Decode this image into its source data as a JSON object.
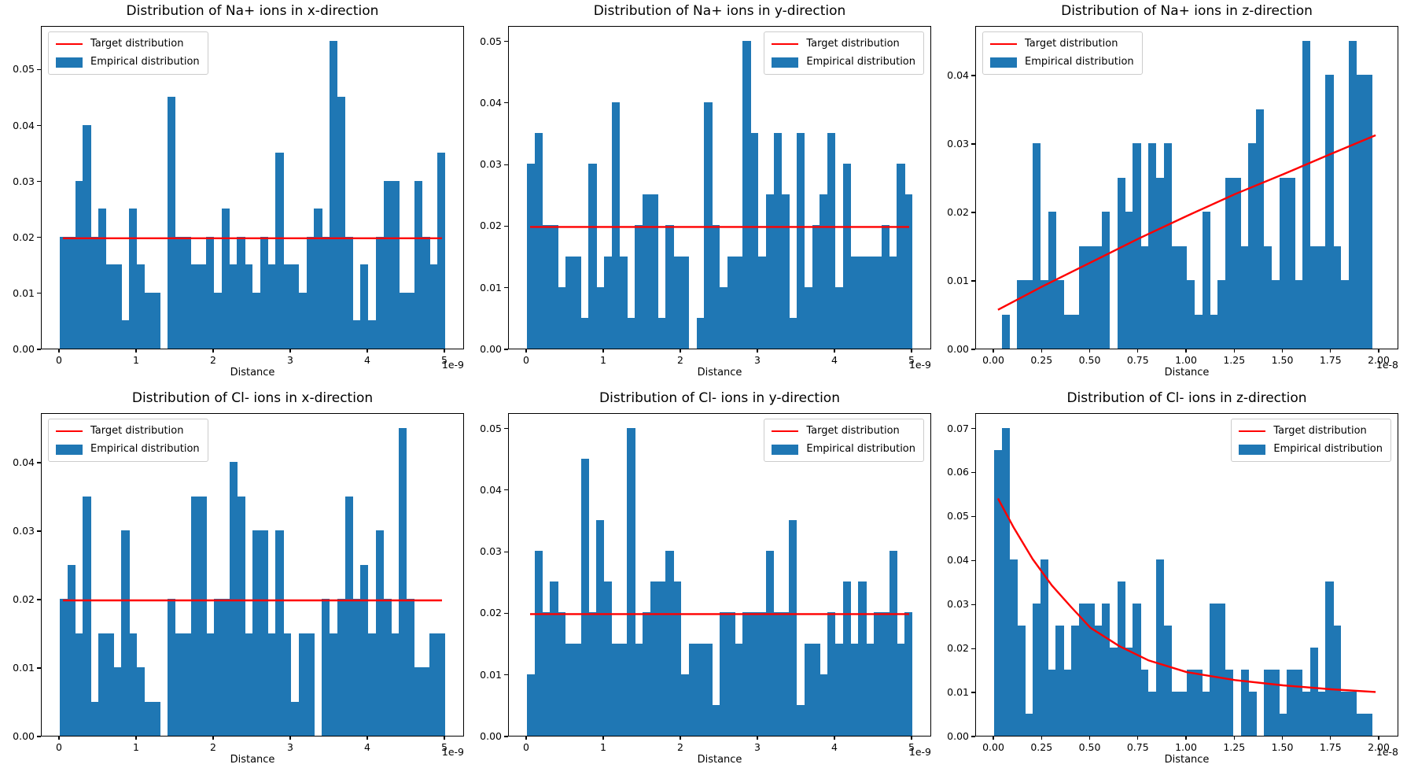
{
  "figure": {
    "colors": {
      "bar": "#1f77b4",
      "target": "#ff0000",
      "spine": "#000000",
      "text": "#000000"
    },
    "legend": {
      "target_label": "Target distribution",
      "empirical_label": "Empirical distribution"
    }
  },
  "chart_data": [
    {
      "type": "bar",
      "title": "Distribution of Na+ ions in x-direction",
      "xlabel": "Distance",
      "x_offset_label": "1e-9",
      "x_unit": "1e-9 m",
      "x_min": 0,
      "x_max": 5,
      "bin_size": 0.1,
      "ylim": [
        0,
        0.0578
      ],
      "x_tick_labels": [
        "0",
        "1",
        "2",
        "3",
        "4",
        "5"
      ],
      "y_tick_labels": [
        "0.00",
        "0.01",
        "0.02",
        "0.03",
        "0.04",
        "0.05"
      ],
      "legend_pos": "left",
      "grid": false,
      "values": [
        0.02,
        0.02,
        0.03,
        0.04,
        0.02,
        0.025,
        0.015,
        0.015,
        0.005,
        0.025,
        0.015,
        0.01,
        0.01,
        0,
        0.045,
        0.02,
        0.02,
        0.015,
        0.015,
        0.02,
        0.01,
        0.025,
        0.015,
        0.02,
        0.015,
        0.01,
        0.02,
        0.015,
        0.035,
        0.015,
        0.015,
        0.01,
        0.02,
        0.025,
        0.02,
        0.055,
        0.045,
        0.02,
        0.005,
        0.015,
        0.005,
        0.02,
        0.03,
        0.03,
        0.01,
        0.01,
        0.03,
        0.02,
        0.015,
        0.035
      ],
      "target": {
        "kind": "flat",
        "y": 0.02
      }
    },
    {
      "type": "bar",
      "title": "Distribution of Na+ ions in y-direction",
      "xlabel": "Distance",
      "x_offset_label": "1e-9",
      "x_unit": "1e-9 m",
      "x_min": 0,
      "x_max": 5,
      "bin_size": 0.1,
      "ylim": [
        0,
        0.0525
      ],
      "x_tick_labels": [
        "0",
        "1",
        "2",
        "3",
        "4",
        "5"
      ],
      "y_tick_labels": [
        "0.00",
        "0.01",
        "0.02",
        "0.03",
        "0.04",
        "0.05"
      ],
      "legend_pos": "right",
      "grid": false,
      "values": [
        0.03,
        0.035,
        0.02,
        0.02,
        0.01,
        0.015,
        0.015,
        0.005,
        0.03,
        0.01,
        0.015,
        0.04,
        0.015,
        0.005,
        0.02,
        0.025,
        0.025,
        0.005,
        0.02,
        0.015,
        0.015,
        0,
        0.005,
        0.04,
        0.02,
        0.01,
        0.015,
        0.015,
        0.05,
        0.035,
        0.015,
        0.025,
        0.035,
        0.025,
        0.005,
        0.035,
        0.01,
        0.02,
        0.025,
        0.035,
        0.01,
        0.03,
        0.015,
        0.015,
        0.015,
        0.015,
        0.02,
        0.015,
        0.03,
        0.025
      ],
      "target": {
        "kind": "flat",
        "y": 0.02
      }
    },
    {
      "type": "bar",
      "title": "Distribution of Na+ ions in z-direction",
      "xlabel": "Distance",
      "x_offset_label": "1e-8",
      "x_unit": "1e-8 m",
      "x_min": 0,
      "x_max": 2,
      "bin_size": 0.04,
      "ylim": [
        0,
        0.04725
      ],
      "x_tick_labels": [
        "0.00",
        "0.25",
        "0.50",
        "0.75",
        "1.00",
        "1.25",
        "1.50",
        "1.75",
        "2.00"
      ],
      "y_tick_labels": [
        "0.00",
        "0.01",
        "0.02",
        "0.03",
        "0.04"
      ],
      "legend_pos": "left",
      "grid": false,
      "values": [
        0,
        0.005,
        0,
        0.01,
        0.01,
        0.03,
        0.01,
        0.02,
        0.01,
        0.005,
        0.005,
        0.015,
        0.015,
        0.015,
        0.02,
        0,
        0.025,
        0.02,
        0.03,
        0.015,
        0.03,
        0.025,
        0.03,
        0.015,
        0.015,
        0.01,
        0.005,
        0.02,
        0.005,
        0.01,
        0.025,
        0.025,
        0.015,
        0.03,
        0.035,
        0.015,
        0.01,
        0.025,
        0.025,
        0.01,
        0.045,
        0.015,
        0.015,
        0.04,
        0.015,
        0.01,
        0.045,
        0.04,
        0.04,
        0
      ],
      "target": {
        "kind": "curve",
        "points": [
          [
            0.02,
            0.0059
          ],
          [
            0.25,
            0.0093
          ],
          [
            0.5,
            0.0128
          ],
          [
            0.75,
            0.0163
          ],
          [
            1.0,
            0.0196
          ],
          [
            1.25,
            0.0228
          ],
          [
            1.5,
            0.0257
          ],
          [
            1.75,
            0.0287
          ],
          [
            1.98,
            0.0314
          ]
        ]
      }
    },
    {
      "type": "bar",
      "title": "Distribution of Cl- ions in x-direction",
      "xlabel": "Distance",
      "x_offset_label": "1e-9",
      "x_unit": "1e-9 m",
      "x_min": 0,
      "x_max": 5,
      "bin_size": 0.1,
      "ylim": [
        0,
        0.04725
      ],
      "x_tick_labels": [
        "0",
        "1",
        "2",
        "3",
        "4",
        "5"
      ],
      "y_tick_labels": [
        "0.00",
        "0.01",
        "0.02",
        "0.03",
        "0.04"
      ],
      "legend_pos": "left",
      "grid": false,
      "values": [
        0.02,
        0.025,
        0.015,
        0.035,
        0.005,
        0.015,
        0.015,
        0.01,
        0.03,
        0.015,
        0.01,
        0.005,
        0.005,
        0,
        0.02,
        0.015,
        0.015,
        0.035,
        0.035,
        0.015,
        0.02,
        0.02,
        0.04,
        0.035,
        0.015,
        0.03,
        0.03,
        0.015,
        0.03,
        0.015,
        0.005,
        0.015,
        0.015,
        0,
        0.02,
        0.015,
        0.02,
        0.035,
        0.02,
        0.025,
        0.015,
        0.03,
        0.02,
        0.015,
        0.045,
        0.02,
        0.01,
        0.01,
        0.015,
        0.015
      ],
      "target": {
        "kind": "flat",
        "y": 0.02
      }
    },
    {
      "type": "bar",
      "title": "Distribution of Cl- ions in y-direction",
      "xlabel": "Distance",
      "x_offset_label": "1e-9",
      "x_unit": "1e-9 m",
      "x_min": 0,
      "x_max": 5,
      "bin_size": 0.1,
      "ylim": [
        0,
        0.0525
      ],
      "x_tick_labels": [
        "0",
        "1",
        "2",
        "3",
        "4",
        "5"
      ],
      "y_tick_labels": [
        "0.00",
        "0.01",
        "0.02",
        "0.03",
        "0.04",
        "0.05"
      ],
      "legend_pos": "right",
      "grid": false,
      "values": [
        0.01,
        0.03,
        0.02,
        0.025,
        0.02,
        0.015,
        0.015,
        0.045,
        0.02,
        0.035,
        0.025,
        0.015,
        0.015,
        0.05,
        0.015,
        0.02,
        0.025,
        0.025,
        0.03,
        0.025,
        0.01,
        0.015,
        0.015,
        0.015,
        0.005,
        0.02,
        0.02,
        0.015,
        0.02,
        0.02,
        0.02,
        0.03,
        0.02,
        0.02,
        0.035,
        0.005,
        0.015,
        0.015,
        0.01,
        0.02,
        0.015,
        0.025,
        0.015,
        0.025,
        0.015,
        0.02,
        0.02,
        0.03,
        0.015,
        0.02
      ],
      "target": {
        "kind": "flat",
        "y": 0.02
      }
    },
    {
      "type": "bar",
      "title": "Distribution of Cl- ions in z-direction",
      "xlabel": "Distance",
      "x_offset_label": "1e-8",
      "x_unit": "1e-8 m",
      "x_min": 0,
      "x_max": 2,
      "bin_size": 0.04,
      "ylim": [
        0,
        0.0735
      ],
      "x_tick_labels": [
        "0.00",
        "0.25",
        "0.50",
        "0.75",
        "1.00",
        "1.25",
        "1.50",
        "1.75",
        "2.00"
      ],
      "y_tick_labels": [
        "0.00",
        "0.01",
        "0.02",
        "0.03",
        "0.04",
        "0.05",
        "0.06",
        "0.07"
      ],
      "legend_pos": "right",
      "grid": false,
      "values": [
        0.065,
        0.07,
        0.04,
        0.025,
        0.005,
        0.03,
        0.04,
        0.015,
        0.025,
        0.015,
        0.025,
        0.03,
        0.03,
        0.025,
        0.03,
        0.02,
        0.035,
        0.02,
        0.03,
        0.015,
        0.01,
        0.04,
        0.025,
        0.01,
        0.01,
        0.015,
        0.015,
        0.01,
        0.03,
        0.03,
        0.015,
        0,
        0.015,
        0.01,
        0,
        0.015,
        0.015,
        0.005,
        0.015,
        0.015,
        0.01,
        0.02,
        0.01,
        0.035,
        0.025,
        0.01,
        0.01,
        0.005,
        0.005,
        0
      ],
      "target": {
        "kind": "curve",
        "points": [
          [
            0.02,
            0.0543
          ],
          [
            0.1,
            0.0478
          ],
          [
            0.2,
            0.0405
          ],
          [
            0.3,
            0.0345
          ],
          [
            0.4,
            0.0296
          ],
          [
            0.5,
            0.0249
          ],
          [
            0.65,
            0.0207
          ],
          [
            0.8,
            0.0175
          ],
          [
            1.0,
            0.0148
          ],
          [
            1.25,
            0.013
          ],
          [
            1.5,
            0.0118
          ],
          [
            1.75,
            0.0109
          ],
          [
            1.98,
            0.0103
          ]
        ]
      }
    }
  ]
}
